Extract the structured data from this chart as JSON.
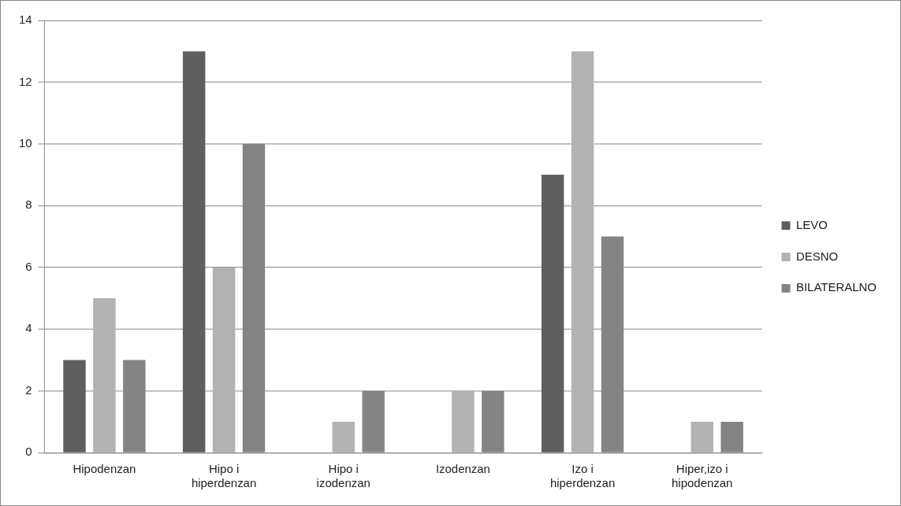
{
  "chart_data": {
    "type": "bar",
    "categories": [
      "Hipodenzan",
      "Hipo i hiperdenzan",
      "Hipo i izodenzan",
      "Izodenzan",
      "Izo i hiperdenzan",
      "Hiper,izo i hipodenzan"
    ],
    "series": [
      {
        "name": "LEVO",
        "color": "#5f5f5f",
        "values": [
          3,
          13,
          0,
          0,
          9,
          0
        ]
      },
      {
        "name": "DESNO",
        "color": "#b2b2b2",
        "values": [
          5,
          6,
          1,
          2,
          13,
          1
        ]
      },
      {
        "name": "BILATERALNO",
        "color": "#848484",
        "values": [
          3,
          10,
          2,
          2,
          7,
          1
        ]
      }
    ],
    "ylim": [
      0,
      14
    ],
    "yticks": [
      0,
      2,
      4,
      6,
      8,
      10,
      12,
      14
    ],
    "grid": "y",
    "legend": "right"
  }
}
